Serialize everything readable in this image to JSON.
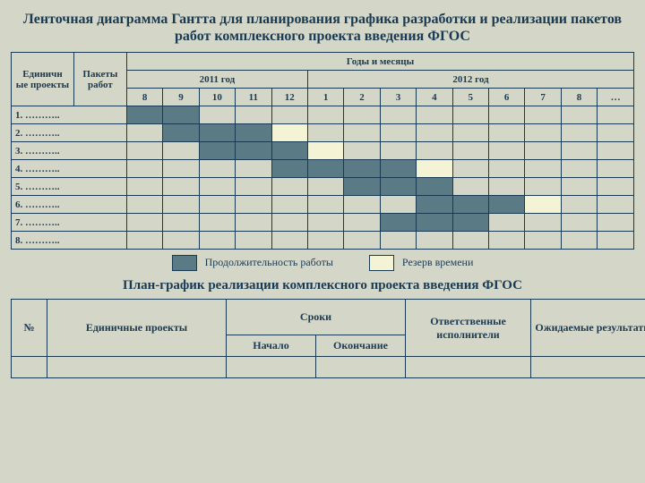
{
  "title": "Ленточная диаграмма Гантта для планирования графика разработки  и реализации  пакетов работ комплексного проекта введения ФГОС",
  "colors": {
    "work": "#5a7a85",
    "reserve": "#f5f3d6",
    "border": "#1a3a52",
    "bg": "#d4d6c8"
  },
  "gantt": {
    "col1": "Единичн\nые проекты",
    "col2": "Пакеты работ",
    "group_header": "Годы  и месяцы",
    "year1": "2011 год",
    "year2": "2012 год",
    "months": [
      "8",
      "9",
      "10",
      "11",
      "12",
      "1",
      "2",
      "3",
      "4",
      "5",
      "6",
      "7",
      "8",
      "…"
    ],
    "rows": [
      {
        "label": "1. ………..",
        "cells": [
          "w",
          "w",
          "",
          "",
          "",
          "",
          "",
          "",
          "",
          "",
          "",
          "",
          "",
          ""
        ]
      },
      {
        "label": "2. ………..",
        "cells": [
          "",
          "w",
          "w",
          "w",
          "r",
          "",
          "",
          "",
          "",
          "",
          "",
          "",
          "",
          ""
        ]
      },
      {
        "label": "3. ………..",
        "cells": [
          "",
          "",
          "w",
          "w",
          "w",
          "r",
          "",
          "",
          "",
          "",
          "",
          "",
          "",
          ""
        ]
      },
      {
        "label": "4. ………..",
        "cells": [
          "",
          "",
          "",
          "",
          "w",
          "w",
          "w",
          "w",
          "r",
          "",
          "",
          "",
          "",
          ""
        ]
      },
      {
        "label": "5. ………..",
        "cells": [
          "",
          "",
          "",
          "",
          "",
          "",
          "w",
          "w",
          "w",
          "",
          "",
          "",
          "",
          ""
        ]
      },
      {
        "label": "6. ………..",
        "cells": [
          "",
          "",
          "",
          "",
          "",
          "",
          "",
          "",
          "w",
          "w",
          "w",
          "r",
          "",
          ""
        ]
      },
      {
        "label": "7. ………..",
        "cells": [
          "",
          "",
          "",
          "",
          "",
          "",
          "",
          "w",
          "w",
          "w",
          "",
          "",
          "",
          ""
        ]
      },
      {
        "label": "8. ………..",
        "cells": [
          "",
          "",
          "",
          "",
          "",
          "",
          "",
          "",
          "",
          "",
          "",
          "",
          "",
          ""
        ]
      }
    ]
  },
  "legend": {
    "work": "Продолжительность работы",
    "reserve": "Резерв времени"
  },
  "subtitle": "План-график реализации комплексного проекта введения ФГОС",
  "plan": {
    "cols": {
      "num": "№",
      "proj": "Единичные проекты",
      "dates": "Сроки",
      "resp": "Ответственные исполнители",
      "results": "Ожидаемые результаты",
      "start": "Начало",
      "end": "Окончание"
    }
  }
}
